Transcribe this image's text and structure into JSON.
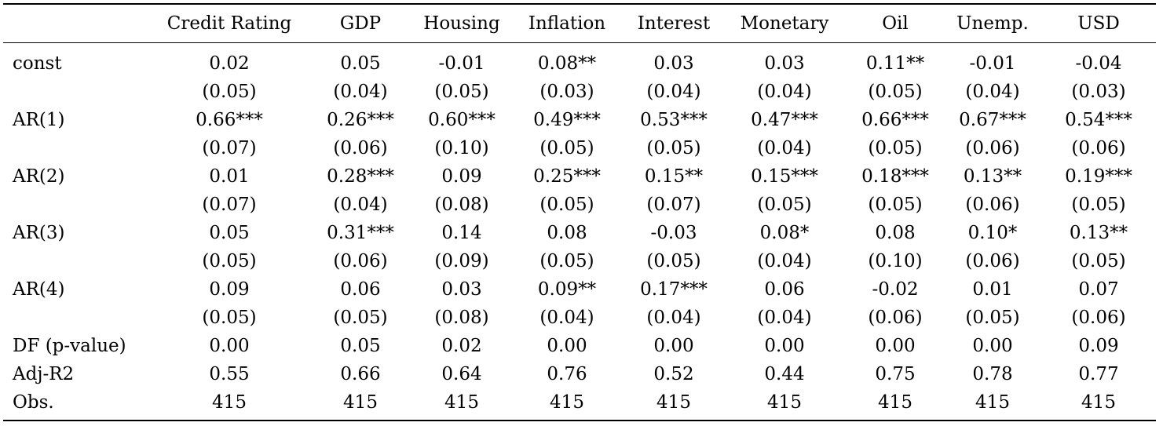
{
  "columns": [
    "Credit Rating",
    "GDP",
    "Housing",
    "Inflation",
    "Interest",
    "Monetary",
    "Oil",
    "Unemp.",
    "USD"
  ],
  "rows": [
    {
      "label": "const",
      "values": [
        "0.02",
        "0.05",
        "-0.01",
        "0.08**",
        "0.03",
        "0.03",
        "0.11**",
        "-0.01",
        "-0.04"
      ]
    },
    {
      "label": "",
      "values": [
        "(0.05)",
        "(0.04)",
        "(0.05)",
        "(0.03)",
        "(0.04)",
        "(0.04)",
        "(0.05)",
        "(0.04)",
        "(0.03)"
      ]
    },
    {
      "label": "AR(1)",
      "values": [
        "0.66***",
        "0.26***",
        "0.60***",
        "0.49***",
        "0.53***",
        "0.47***",
        "0.66***",
        "0.67***",
        "0.54***"
      ]
    },
    {
      "label": "",
      "values": [
        "(0.07)",
        "(0.06)",
        "(0.10)",
        "(0.05)",
        "(0.05)",
        "(0.04)",
        "(0.05)",
        "(0.06)",
        "(0.06)"
      ]
    },
    {
      "label": "AR(2)",
      "values": [
        "0.01",
        "0.28***",
        "0.09",
        "0.25***",
        "0.15**",
        "0.15***",
        "0.18***",
        "0.13**",
        "0.19***"
      ]
    },
    {
      "label": "",
      "values": [
        "(0.07)",
        "(0.04)",
        "(0.08)",
        "(0.05)",
        "(0.07)",
        "(0.05)",
        "(0.05)",
        "(0.06)",
        "(0.05)"
      ]
    },
    {
      "label": "AR(3)",
      "values": [
        "0.05",
        "0.31***",
        "0.14",
        "0.08",
        "-0.03",
        "0.08*",
        "0.08",
        "0.10*",
        "0.13**"
      ]
    },
    {
      "label": "",
      "values": [
        "(0.05)",
        "(0.06)",
        "(0.09)",
        "(0.05)",
        "(0.05)",
        "(0.04)",
        "(0.10)",
        "(0.06)",
        "(0.05)"
      ]
    },
    {
      "label": "AR(4)",
      "values": [
        "0.09",
        "0.06",
        "0.03",
        "0.09**",
        "0.17***",
        "0.06",
        "-0.02",
        "0.01",
        "0.07"
      ]
    },
    {
      "label": "",
      "values": [
        "(0.05)",
        "(0.05)",
        "(0.08)",
        "(0.04)",
        "(0.04)",
        "(0.04)",
        "(0.06)",
        "(0.05)",
        "(0.06)"
      ]
    },
    {
      "label": "DF (p-value)",
      "values": [
        "0.00",
        "0.05",
        "0.02",
        "0.00",
        "0.00",
        "0.00",
        "0.00",
        "0.00",
        "0.09"
      ]
    },
    {
      "label": "Adj-R2",
      "values": [
        "0.55",
        "0.66",
        "0.64",
        "0.76",
        "0.52",
        "0.44",
        "0.75",
        "0.78",
        "0.77"
      ]
    },
    {
      "label": "Obs.",
      "values": [
        "415",
        "415",
        "415",
        "415",
        "415",
        "415",
        "415",
        "415",
        "415"
      ]
    }
  ]
}
